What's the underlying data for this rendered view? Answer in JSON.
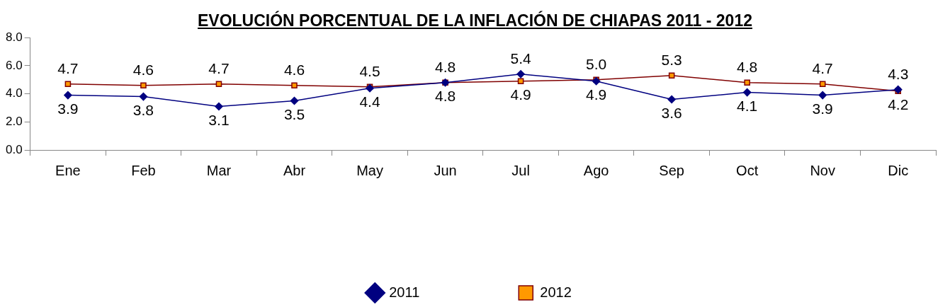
{
  "chart_data": {
    "type": "line",
    "title": "EVOLUCIÓN PORCENTUAL DE LA INFLACIÓN DE CHIAPAS 2011 -  2012",
    "categories": [
      "Ene",
      "Feb",
      "Mar",
      "Abr",
      "May",
      "Jun",
      "Jul",
      "Ago",
      "Sep",
      "Oct",
      "Nov",
      "Dic"
    ],
    "series": [
      {
        "name": "2011",
        "color": "#000080",
        "marker": "diamond",
        "values": [
          3.9,
          3.8,
          3.1,
          3.5,
          4.4,
          4.8,
          5.4,
          4.9,
          3.6,
          4.1,
          3.9,
          4.3
        ],
        "value_labels": [
          "3.9",
          "3.8",
          "3.1",
          "3.5",
          "4.4",
          "4.8",
          "5.4",
          "4.9",
          "3.6",
          "4.1",
          "3.9",
          "4.3"
        ]
      },
      {
        "name": "2012",
        "color": "#800000",
        "marker": "square",
        "values": [
          4.7,
          4.6,
          4.7,
          4.6,
          4.5,
          4.8,
          4.9,
          5.0,
          5.3,
          4.8,
          4.7,
          4.2
        ],
        "value_labels": [
          "4.7",
          "4.6",
          "4.7",
          "4.6",
          "4.5",
          "4.8",
          "4.9",
          "5.0",
          "5.3",
          "4.8",
          "4.7",
          "4.2"
        ]
      }
    ],
    "ylim": [
      0,
      8
    ],
    "yticks": [
      {
        "value": 0,
        "label": "0.0"
      },
      {
        "value": 2,
        "label": "2.0"
      },
      {
        "value": 4,
        "label": "4.0"
      },
      {
        "value": 6,
        "label": "6.0"
      },
      {
        "value": 8,
        "label": "8.0"
      }
    ],
    "grid": false,
    "legend": "bottom",
    "line_style": "solid"
  }
}
